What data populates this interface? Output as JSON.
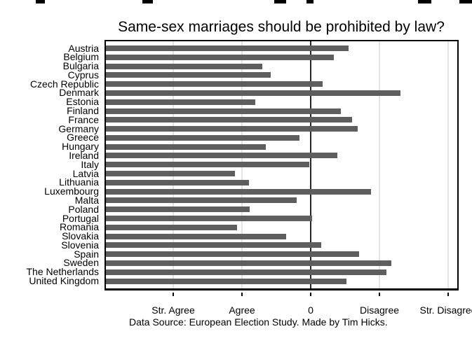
{
  "title": "Same-sex marriages should be prohibited by law?",
  "caption": "Data Source: European Election Study. Made by Tim Hicks.",
  "chart_data": {
    "type": "bar",
    "orientation": "horizontal",
    "title": "Same-sex marriages should be prohibited by law?",
    "note": "Data Source: European Election Study. Made by Tim Hicks.",
    "categories": [
      "Austria",
      "Belgium",
      "Bulgaria",
      "Cyprus",
      "Czech Republic",
      "Denmark",
      "Estonia",
      "Finland",
      "France",
      "Germany",
      "Greece",
      "Hungary",
      "Ireland",
      "Italy",
      "Latvia",
      "Lithuania",
      "Luxembourg",
      "Malta",
      "Poland",
      "Portugal",
      "Romania",
      "Slovakia",
      "Slovenia",
      "Spain",
      "Sweden",
      "The Netherlands",
      "United Kingdom"
    ],
    "values": [
      0.55,
      0.34,
      -0.7,
      -0.58,
      0.17,
      1.31,
      -0.81,
      0.44,
      0.6,
      0.68,
      -0.16,
      -0.65,
      0.39,
      -0.02,
      -1.1,
      -0.9,
      0.88,
      -0.2,
      -0.89,
      0.02,
      -1.07,
      -0.36,
      0.15,
      0.7,
      1.17,
      1.1,
      0.52
    ],
    "value_scale": "mean agreement per country; -2 = Str. Agree, -1 = Agree, 0 = neutral, 1 = Disagree, 2 = Str. Disagree; bars drawn from axis minimum -3",
    "xlim": [
      -3,
      2.153
    ],
    "xticks": [
      {
        "value": -2,
        "label": "Str. Agree"
      },
      {
        "value": -1,
        "label": "Agree"
      },
      {
        "value": 0,
        "label": "0"
      },
      {
        "value": 1,
        "label": "Disagree"
      },
      {
        "value": 2,
        "label": "Str. Disagree"
      }
    ],
    "xlabel": "",
    "ylabel": "",
    "legend": "none",
    "grid": "light vertical gridlines at labeled ticks, dark vertical line at 0",
    "colors": {
      "bar": "#5e5e5e",
      "grid": "#e3e3e3",
      "zero_line": "#262626",
      "frame": "#000000",
      "background": "#ffffff"
    }
  }
}
